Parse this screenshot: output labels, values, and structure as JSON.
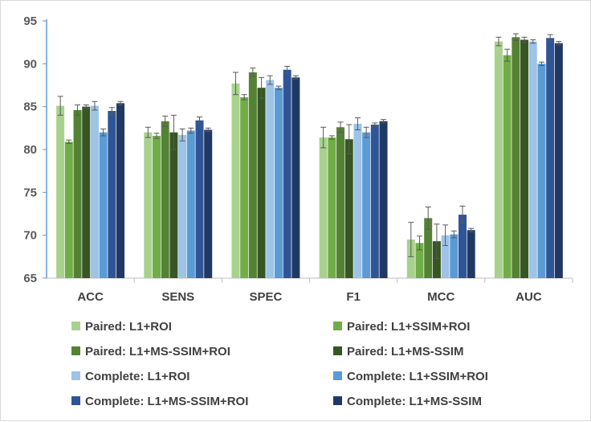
{
  "chart_data": {
    "type": "bar",
    "title": "",
    "xlabel": "",
    "ylabel": "",
    "ylim": [
      65,
      95
    ],
    "yticks": [
      65,
      70,
      75,
      80,
      85,
      90,
      95
    ],
    "grid": false,
    "legend_position": "bottom",
    "categories": [
      "ACC",
      "SENS",
      "SPEC",
      "F1",
      "MCC",
      "AUC"
    ],
    "series": [
      {
        "name": "Paired: L1+ROI",
        "color": "#a9d18e",
        "values": [
          85.1,
          82.0,
          87.7,
          81.4,
          69.5,
          92.6
        ],
        "errors": [
          1.1,
          0.6,
          1.3,
          1.2,
          2.0,
          0.5
        ]
      },
      {
        "name": "Paired: L1+SSIM+ROI",
        "color": "#70ad47",
        "values": [
          80.9,
          81.6,
          86.1,
          81.4,
          69.1,
          91.0
        ],
        "errors": [
          0.2,
          0.3,
          0.3,
          0.2,
          0.8,
          0.7
        ]
      },
      {
        "name": "Paired: L1+MS-SSIM+ROI",
        "color": "#548235",
        "values": [
          84.6,
          83.3,
          89.0,
          82.6,
          72.0,
          93.1
        ],
        "errors": [
          0.6,
          0.6,
          0.5,
          0.6,
          1.3,
          0.4
        ]
      },
      {
        "name": "Paired: L1+MS-SSIM",
        "color": "#375623",
        "values": [
          85.0,
          82.0,
          87.2,
          81.2,
          69.3,
          92.8
        ],
        "errors": [
          0.2,
          2.0,
          1.2,
          1.7,
          2.0,
          0.3
        ]
      },
      {
        "name": "Complete: L1+ROI",
        "color": "#9dc3e6",
        "values": [
          85.1,
          81.7,
          88.1,
          83.0,
          70.0,
          92.6
        ],
        "errors": [
          0.5,
          0.7,
          0.5,
          0.7,
          1.2,
          0.2
        ]
      },
      {
        "name": "Complete: L1+SSIM+ROI",
        "color": "#5b9bd5",
        "values": [
          82.0,
          82.2,
          87.2,
          82.0,
          70.1,
          90.0
        ],
        "errors": [
          0.4,
          0.3,
          0.2,
          0.6,
          0.4,
          0.2
        ]
      },
      {
        "name": "Complete: L1+MS-SSIM+ROI",
        "color": "#2f5597",
        "values": [
          84.5,
          83.4,
          89.3,
          82.9,
          72.4,
          93.0
        ],
        "errors": [
          0.4,
          0.4,
          0.4,
          0.2,
          1.0,
          0.4
        ]
      },
      {
        "name": "Complete: L1+MS-SSIM",
        "color": "#203864",
        "values": [
          85.4,
          82.3,
          88.4,
          83.3,
          70.6,
          92.4
        ],
        "errors": [
          0.2,
          0.2,
          0.2,
          0.2,
          0.2,
          0.2
        ]
      }
    ]
  }
}
